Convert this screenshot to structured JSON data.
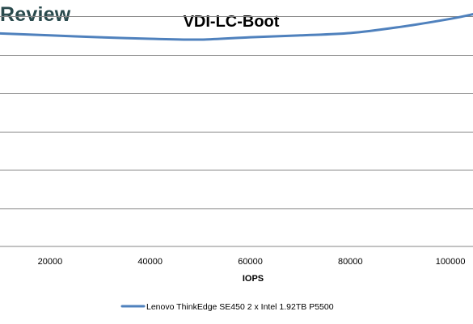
{
  "brand": {
    "text": "Review",
    "color": "#2a4a4d"
  },
  "chart_data": {
    "type": "line",
    "title": "VDI-LC-Boot",
    "xlabel": "IOPS",
    "ylabel": "",
    "xlim": [
      10000,
      104500
    ],
    "ylim": [
      0,
      6
    ],
    "x_ticks": [
      20000,
      40000,
      60000,
      80000,
      100000
    ],
    "x_tick_labels": [
      "20000",
      "40000",
      "60000",
      "80000",
      "100000"
    ],
    "y_gridlines": [
      0,
      1,
      2,
      3,
      4,
      5,
      6
    ],
    "y_tick_labels_visible": false,
    "grid": true,
    "legend_position": "bottom",
    "series": [
      {
        "name": "Lenovo ThinkEdge SE450 2 x Intel 1.92TB P5500",
        "color": "#4f81bd",
        "x": [
          10000,
          20000,
          30000,
          40000,
          50000,
          60000,
          70000,
          80000,
          90000,
          100000,
          104500
        ],
        "y": [
          5.55,
          5.5,
          5.45,
          5.41,
          5.39,
          5.45,
          5.5,
          5.56,
          5.72,
          5.93,
          6.05
        ]
      }
    ]
  }
}
